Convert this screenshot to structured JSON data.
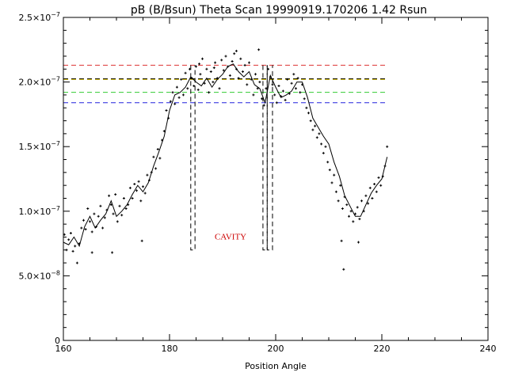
{
  "chart_data": {
    "type": "scatter",
    "title": "pB (B/Bsun) Theta Scan 19990919.170206 1.42 Rsun",
    "xlabel": "Position Angle",
    "ylabel": "",
    "xlim": [
      160,
      240
    ],
    "ylim": [
      0,
      2.5e-07
    ],
    "x_ticks": [
      {
        "value": 160,
        "label": "160"
      },
      {
        "value": 180,
        "label": "180"
      },
      {
        "value": 200,
        "label": "200"
      },
      {
        "value": 220,
        "label": "220"
      },
      {
        "value": 240,
        "label": "240"
      }
    ],
    "y_ticks": [
      {
        "value": 0,
        "base": "0",
        "exp": ""
      },
      {
        "value": 5e-08,
        "base": "5.0×10",
        "exp": "−8"
      },
      {
        "value": 1e-07,
        "base": "1.0×10",
        "exp": "−7"
      },
      {
        "value": 1.5e-07,
        "base": "1.5×10",
        "exp": "−7"
      },
      {
        "value": 2e-07,
        "base": "2.0×10",
        "exp": "−7"
      },
      {
        "value": 2.5e-07,
        "base": "2.5×10",
        "exp": "−7"
      }
    ],
    "reference_lines": [
      {
        "y": 2.13e-07,
        "color": "#dd3333"
      },
      {
        "y": 2.025e-07,
        "color": "#000000"
      },
      {
        "y": 2.02e-07,
        "color": "#c8b000"
      },
      {
        "y": 1.92e-07,
        "color": "#33cc33"
      },
      {
        "y": 1.84e-07,
        "color": "#2222dd"
      }
    ],
    "reference_line_xrange": [
      160,
      221
    ],
    "cavity_bounds": [
      {
        "x0": 184.0,
        "x1": 184.8,
        "y_low": 7e-08,
        "y_high": 2.13e-07
      },
      {
        "x0": 197.6,
        "x1": 198.4,
        "y_low": 7e-08,
        "y_high": 2.13e-07
      },
      {
        "x0": 198.4,
        "x1": 199.4,
        "y_low": 7e-08,
        "y_high": 2.13e-07
      }
    ],
    "annotation": {
      "text": "CAVITY",
      "x": 191.5,
      "y": 7.8e-08,
      "color": "#cc0000"
    },
    "smooth_curve": {
      "x": [
        160,
        161,
        162,
        163,
        164,
        165,
        166,
        167,
        168,
        169,
        170,
        171,
        172,
        173,
        174,
        175,
        176,
        177,
        178,
        179,
        180,
        181,
        182,
        183,
        184,
        185,
        186,
        187,
        188,
        189,
        190,
        191,
        192,
        193,
        194,
        195,
        196,
        197,
        198,
        199,
        200,
        201,
        202,
        203,
        204,
        205,
        206,
        207,
        208,
        209,
        210,
        211,
        212,
        213,
        214,
        215,
        216,
        217,
        218,
        219,
        220,
        221
      ],
      "y": [
        7.6e-08,
        7.4e-08,
        8e-08,
        7.3e-08,
        8.8e-08,
        9.6e-08,
        8.7e-08,
        9.3e-08,
        9.8e-08,
        1.08e-07,
        9.6e-08,
        1e-07,
        1.05e-07,
        1.13e-07,
        1.2e-07,
        1.15e-07,
        1.22e-07,
        1.35e-07,
        1.46e-07,
        1.58e-07,
        1.78e-07,
        1.9e-07,
        1.92e-07,
        1.96e-07,
        2.04e-07,
        2e-07,
        1.97e-07,
        2.03e-07,
        1.96e-07,
        2.02e-07,
        2.06e-07,
        2.12e-07,
        2.14e-07,
        2.08e-07,
        2.04e-07,
        2.08e-07,
        1.98e-07,
        1.95e-07,
        1.84e-07,
        2.05e-07,
        1.96e-07,
        1.88e-07,
        1.9e-07,
        1.93e-07,
        2e-07,
        2e-07,
        1.88e-07,
        1.72e-07,
        1.65e-07,
        1.58e-07,
        1.52e-07,
        1.38e-07,
        1.27e-07,
        1.12e-07,
        1.04e-07,
        9.6e-08,
        9.6e-08,
        1.05e-07,
        1.14e-07,
        1.2e-07,
        1.25e-07,
        1.42e-07
      ]
    },
    "points": {
      "x": [
        160.2,
        160.6,
        161.0,
        161.4,
        161.8,
        162.2,
        162.6,
        163.0,
        163.4,
        163.8,
        164.2,
        164.6,
        165.0,
        165.4,
        165.8,
        166.2,
        166.6,
        167.0,
        167.4,
        167.8,
        168.2,
        168.6,
        169.0,
        169.4,
        169.8,
        170.2,
        170.6,
        171.0,
        171.4,
        171.8,
        172.2,
        172.6,
        173.0,
        173.4,
        173.8,
        174.2,
        174.6,
        175.0,
        175.4,
        175.8,
        176.2,
        176.6,
        177.0,
        177.4,
        177.8,
        178.2,
        178.6,
        179.0,
        179.4,
        179.8,
        180.2,
        180.6,
        181.0,
        181.4,
        181.8,
        182.2,
        182.6,
        183.0,
        183.4,
        183.8,
        184.2,
        184.6,
        185.0,
        185.4,
        185.8,
        186.2,
        186.6,
        187.0,
        187.4,
        187.8,
        188.2,
        188.6,
        189.0,
        189.4,
        189.8,
        190.2,
        190.6,
        191.0,
        191.4,
        191.8,
        192.2,
        192.6,
        193.0,
        193.4,
        193.8,
        194.2,
        194.6,
        195.0,
        195.4,
        195.8,
        196.2,
        196.6,
        197.0,
        197.4,
        197.8,
        198.2,
        198.6,
        199.0,
        199.4,
        199.8,
        200.2,
        200.6,
        201.0,
        201.4,
        201.8,
        202.2,
        202.6,
        203.0,
        203.4,
        203.8,
        204.2,
        204.6,
        205.0,
        205.4,
        205.8,
        206.2,
        206.6,
        207.0,
        207.4,
        207.8,
        208.2,
        208.6,
        209.0,
        209.4,
        209.8,
        210.2,
        210.6,
        211.0,
        211.4,
        211.8,
        212.2,
        212.6,
        213.0,
        213.4,
        213.8,
        214.2,
        214.6,
        215.0,
        215.4,
        215.8,
        216.2,
        216.6,
        217.0,
        217.4,
        217.8,
        218.2,
        218.6,
        219.0,
        219.4,
        219.8,
        220.2,
        220.6,
        221.0,
        169.2,
        174.8,
        212.8,
        212.4,
        215.6,
        165.4,
        185.6,
        188.4,
        192.6,
        196.8
      ],
      "y": [
        8.2e-08,
        7e-08,
        7.8e-08,
        8.3e-08,
        6.9e-08,
        7.3e-08,
        6e-08,
        7.5e-08,
        8.7e-08,
        9.3e-08,
        8.6e-08,
        1.02e-07,
        9.2e-08,
        8.4e-08,
        9.8e-08,
        8.8e-08,
        9.6e-08,
        1.04e-07,
        8.7e-08,
        9.5e-08,
        1.01e-07,
        1.12e-07,
        1.05e-07,
        9.8e-08,
        1.13e-07,
        9.2e-08,
        1.04e-07,
        9.7e-08,
        1.1e-07,
        1.02e-07,
        1.05e-07,
        1.18e-07,
        1.1e-07,
        1.21e-07,
        1.16e-07,
        1.23e-07,
        1.08e-07,
        1.19e-07,
        1.14e-07,
        1.28e-07,
        1.24e-07,
        1.3e-07,
        1.42e-07,
        1.33e-07,
        1.48e-07,
        1.41e-07,
        1.55e-07,
        1.62e-07,
        1.78e-07,
        1.72e-07,
        1.85e-07,
        1.92e-07,
        1.83e-07,
        1.96e-07,
        1.88e-07,
        2.02e-07,
        1.9e-07,
        2.07e-07,
        1.95e-07,
        2.1e-07,
        2.03e-07,
        1.97e-07,
        2.12e-07,
        1.94e-07,
        2.06e-07,
        2.18e-07,
        1.99e-07,
        2.1e-07,
        1.92e-07,
        2.08e-07,
        2e-07,
        2.15e-07,
        2.03e-07,
        1.95e-07,
        2.17e-07,
        2.09e-07,
        2.2e-07,
        2.12e-07,
        2.05e-07,
        2.16e-07,
        2.22e-07,
        2.1e-07,
        2.03e-07,
        2.18e-07,
        2.08e-07,
        2.13e-07,
        1.98e-07,
        2.15e-07,
        2.02e-07,
        1.9e-07,
        2.06e-07,
        1.95e-07,
        2e-07,
        1.87e-07,
        1.82e-07,
        1.95e-07,
        2.1e-07,
        2.04e-07,
        1.98e-07,
        1.9e-07,
        1.84e-07,
        1.97e-07,
        1.89e-07,
        1.93e-07,
        1.86e-07,
        2.02e-07,
        1.91e-07,
        1.99e-07,
        2.06e-07,
        1.95e-07,
        2.03e-07,
        1.92e-07,
        1.98e-07,
        1.87e-07,
        1.8e-07,
        1.76e-07,
        1.7e-07,
        1.63e-07,
        1.66e-07,
        1.57e-07,
        1.6e-07,
        1.52e-07,
        1.45e-07,
        1.5e-07,
        1.38e-07,
        1.32e-07,
        1.22e-07,
        1.28e-07,
        1.15e-07,
        1.08e-07,
        1.2e-07,
        1.02e-07,
        1.11e-07,
        1.05e-07,
        9.6e-08,
        1e-07,
        9.2e-08,
        9.8e-08,
        1.03e-07,
        9.4e-08,
        1.08e-07,
        1e-07,
        1.12e-07,
        1.06e-07,
        1.18e-07,
        1.1e-07,
        1.21e-07,
        1.15e-07,
        1.26e-07,
        1.2e-07,
        1.27e-07,
        1.35e-07,
        1.5e-07,
        6.8e-08,
        7.7e-08,
        5.5e-08,
        7.7e-08,
        7.6e-08,
        6.8e-08,
        2.14e-07,
        2.11e-07,
        2.24e-07,
        2.25e-07
      ]
    }
  }
}
